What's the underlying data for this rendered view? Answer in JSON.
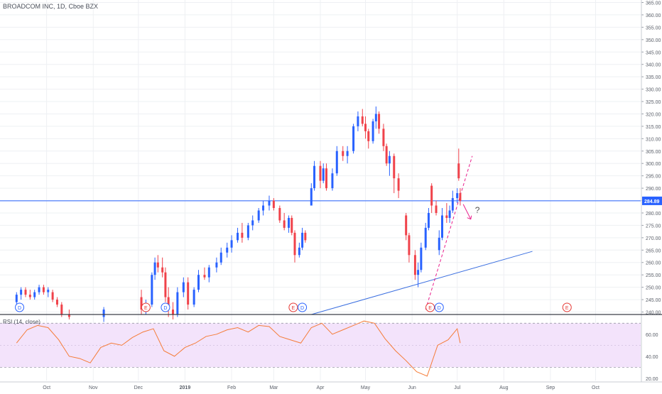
{
  "header": {
    "title": "BROADCOM INC, 1D, Cboe BZX"
  },
  "rsi_panel": {
    "label": "RSI (14, close)"
  },
  "colors": {
    "up": "#2962ff",
    "down": "#f0424a",
    "hline": "#2962ff",
    "trendline": "#3b6fe0",
    "pink": "#e91e8c",
    "rsi_line": "#f57c38",
    "rsi_band": "#f3e3fb",
    "grid": "#eef0f3",
    "event_blue": "#2962ff",
    "event_red": "#e53935"
  },
  "chart_data": [
    {
      "type": "candlestick",
      "title": "BROADCOM INC, 1D, Cboe BZX",
      "x_tick_labels": [
        "Oct",
        "Nov",
        "Dec",
        "2019",
        "Feb",
        "Mar",
        "Apr",
        "May",
        "Jun",
        "Jul",
        "Aug",
        "Sep",
        "Oct"
      ],
      "y_ticks": [
        240,
        245,
        250,
        255,
        260,
        265,
        270,
        275,
        280,
        285,
        290,
        295,
        300,
        305,
        310,
        315,
        320,
        325,
        330,
        335,
        340,
        345,
        350,
        355,
        360,
        365
      ],
      "y_tick_labels": [
        "240.00",
        "245.00",
        "250.00",
        "255.00",
        "260.00",
        "265.00",
        "270.00",
        "275.00",
        "280.00",
        "285.00",
        "290.00",
        "295.00",
        "300.00",
        "305.00",
        "310.00",
        "315.00",
        "320.00",
        "325.00",
        "330.00",
        "335.00",
        "340.00",
        "345.00",
        "350.00",
        "355.00",
        "360.00",
        "365.00"
      ],
      "ylim": [
        239,
        366
      ],
      "last_price": 284.89,
      "last_price_label": "284.89",
      "horizontal_line": 284.89,
      "annotation": "?",
      "events": [
        {
          "date": "2018-09-13",
          "label": "D",
          "kind": "dividend"
        },
        {
          "date": "2018-12-06",
          "label": "E",
          "kind": "earnings"
        },
        {
          "date": "2018-12-19",
          "label": "D",
          "kind": "dividend"
        },
        {
          "date": "2019-03-14",
          "label": "E",
          "kind": "earnings"
        },
        {
          "date": "2019-03-20",
          "label": "D",
          "kind": "dividend"
        },
        {
          "date": "2019-06-13",
          "label": "E",
          "kind": "earnings"
        },
        {
          "date": "2019-06-19",
          "label": "D",
          "kind": "dividend"
        },
        {
          "date": "2019-09-12",
          "label": "E",
          "kind": "earnings"
        }
      ],
      "trendlines": [
        {
          "from": {
            "date": "2019-03-26",
            "value": 239
          },
          "to": {
            "date": "2019-08-20",
            "value": 264.5
          }
        },
        {
          "from": {
            "date": "2019-06-10",
            "value": 241
          },
          "to": {
            "date": "2019-07-11",
            "value": 303
          }
        }
      ],
      "arrow": {
        "from": {
          "date": "2019-07-05",
          "value": 283.5
        },
        "to": {
          "date": "2019-07-10",
          "value": 277.5
        }
      },
      "candles": [
        {
          "d": "2018-09-11",
          "o": 244,
          "h": 248,
          "l": 242,
          "c": 247
        },
        {
          "d": "2018-09-14",
          "o": 247,
          "h": 250,
          "l": 245,
          "c": 249
        },
        {
          "d": "2018-09-17",
          "o": 249,
          "h": 250,
          "l": 246,
          "c": 247
        },
        {
          "d": "2018-09-20",
          "o": 247,
          "h": 249,
          "l": 245,
          "c": 246
        },
        {
          "d": "2018-09-23",
          "o": 246,
          "h": 249,
          "l": 245,
          "c": 248
        },
        {
          "d": "2018-09-26",
          "o": 248,
          "h": 251,
          "l": 247,
          "c": 250
        },
        {
          "d": "2018-09-29",
          "o": 250,
          "h": 251,
          "l": 247,
          "c": 248
        },
        {
          "d": "2018-10-02",
          "o": 248,
          "h": 250,
          "l": 246,
          "c": 249
        },
        {
          "d": "2018-10-05",
          "o": 248,
          "h": 249,
          "l": 244,
          "c": 245
        },
        {
          "d": "2018-10-08",
          "o": 245,
          "h": 246,
          "l": 242,
          "c": 243
        },
        {
          "d": "2018-10-11",
          "o": 243,
          "h": 244,
          "l": 238,
          "c": 239
        },
        {
          "d": "2018-10-16",
          "o": 239,
          "h": 241,
          "l": 237,
          "c": 238
        },
        {
          "d": "2018-11-08",
          "o": 238,
          "h": 242,
          "l": 236,
          "c": 241
        },
        {
          "d": "2018-12-03",
          "o": 246,
          "h": 249,
          "l": 239,
          "c": 241
        },
        {
          "d": "2018-12-06",
          "o": 242,
          "h": 245,
          "l": 239,
          "c": 243
        },
        {
          "d": "2018-12-10",
          "o": 243,
          "h": 256,
          "l": 242,
          "c": 255
        },
        {
          "d": "2018-12-12",
          "o": 255,
          "h": 262,
          "l": 253,
          "c": 260
        },
        {
          "d": "2018-12-14",
          "o": 260,
          "h": 263,
          "l": 256,
          "c": 258
        },
        {
          "d": "2018-12-17",
          "o": 258,
          "h": 262,
          "l": 254,
          "c": 256
        },
        {
          "d": "2018-12-19",
          "o": 256,
          "h": 258,
          "l": 244,
          "c": 246
        },
        {
          "d": "2018-12-21",
          "o": 246,
          "h": 250,
          "l": 238,
          "c": 241
        },
        {
          "d": "2018-12-24",
          "o": 241,
          "h": 244,
          "l": 237,
          "c": 239
        },
        {
          "d": "2018-12-27",
          "o": 239,
          "h": 250,
          "l": 238,
          "c": 248
        },
        {
          "d": "2018-12-31",
          "o": 248,
          "h": 254,
          "l": 246,
          "c": 252
        },
        {
          "d": "2019-01-03",
          "o": 252,
          "h": 254,
          "l": 241,
          "c": 243
        },
        {
          "d": "2019-01-07",
          "o": 243,
          "h": 250,
          "l": 242,
          "c": 249
        },
        {
          "d": "2019-01-10",
          "o": 249,
          "h": 257,
          "l": 248,
          "c": 255
        },
        {
          "d": "2019-01-14",
          "o": 255,
          "h": 258,
          "l": 253,
          "c": 254
        },
        {
          "d": "2019-01-17",
          "o": 254,
          "h": 259,
          "l": 252,
          "c": 258
        },
        {
          "d": "2019-01-22",
          "o": 258,
          "h": 262,
          "l": 256,
          "c": 260
        },
        {
          "d": "2019-01-25",
          "o": 260,
          "h": 266,
          "l": 259,
          "c": 264
        },
        {
          "d": "2019-01-29",
          "o": 264,
          "h": 268,
          "l": 262,
          "c": 266
        },
        {
          "d": "2019-02-01",
          "o": 266,
          "h": 271,
          "l": 264,
          "c": 269
        },
        {
          "d": "2019-02-05",
          "o": 269,
          "h": 274,
          "l": 268,
          "c": 272
        },
        {
          "d": "2019-02-08",
          "o": 272,
          "h": 276,
          "l": 268,
          "c": 270
        },
        {
          "d": "2019-02-12",
          "o": 270,
          "h": 276,
          "l": 269,
          "c": 275
        },
        {
          "d": "2019-02-15",
          "o": 275,
          "h": 279,
          "l": 273,
          "c": 277
        },
        {
          "d": "2019-02-19",
          "o": 277,
          "h": 282,
          "l": 276,
          "c": 281
        },
        {
          "d": "2019-02-22",
          "o": 281,
          "h": 285,
          "l": 279,
          "c": 283
        },
        {
          "d": "2019-02-26",
          "o": 283,
          "h": 287,
          "l": 281,
          "c": 285
        },
        {
          "d": "2019-03-01",
          "o": 285,
          "h": 286,
          "l": 281,
          "c": 282
        },
        {
          "d": "2019-03-05",
          "o": 282,
          "h": 283,
          "l": 276,
          "c": 277
        },
        {
          "d": "2019-03-08",
          "o": 277,
          "h": 280,
          "l": 273,
          "c": 274
        },
        {
          "d": "2019-03-11",
          "o": 274,
          "h": 279,
          "l": 272,
          "c": 278
        },
        {
          "d": "2019-03-13",
          "o": 278,
          "h": 279,
          "l": 271,
          "c": 272
        },
        {
          "d": "2019-03-15",
          "o": 272,
          "h": 273,
          "l": 260,
          "c": 263
        },
        {
          "d": "2019-03-18",
          "o": 263,
          "h": 268,
          "l": 262,
          "c": 266
        },
        {
          "d": "2019-03-20",
          "o": 266,
          "h": 274,
          "l": 265,
          "c": 272
        },
        {
          "d": "2019-03-22",
          "o": 272,
          "h": 273,
          "l": 268,
          "c": 269
        },
        {
          "d": "2019-03-26",
          "o": 283,
          "h": 292,
          "l": 283,
          "c": 290
        },
        {
          "d": "2019-03-28",
          "o": 290,
          "h": 301,
          "l": 289,
          "c": 299
        },
        {
          "d": "2019-04-01",
          "o": 299,
          "h": 301,
          "l": 290,
          "c": 293
        },
        {
          "d": "2019-04-03",
          "o": 293,
          "h": 300,
          "l": 292,
          "c": 298
        },
        {
          "d": "2019-04-05",
          "o": 298,
          "h": 300,
          "l": 289,
          "c": 290
        },
        {
          "d": "2019-04-09",
          "o": 290,
          "h": 298,
          "l": 289,
          "c": 296
        },
        {
          "d": "2019-04-12",
          "o": 296,
          "h": 307,
          "l": 295,
          "c": 305
        },
        {
          "d": "2019-04-16",
          "o": 305,
          "h": 307,
          "l": 301,
          "c": 303
        },
        {
          "d": "2019-04-19",
          "o": 303,
          "h": 307,
          "l": 300,
          "c": 305
        },
        {
          "d": "2019-04-23",
          "o": 305,
          "h": 316,
          "l": 304,
          "c": 315
        },
        {
          "d": "2019-04-26",
          "o": 315,
          "h": 321,
          "l": 313,
          "c": 319
        },
        {
          "d": "2019-04-29",
          "o": 319,
          "h": 322,
          "l": 315,
          "c": 316
        },
        {
          "d": "2019-05-01",
          "o": 316,
          "h": 319,
          "l": 310,
          "c": 313
        },
        {
          "d": "2019-05-03",
          "o": 313,
          "h": 314,
          "l": 306,
          "c": 309
        },
        {
          "d": "2019-05-06",
          "o": 309,
          "h": 318,
          "l": 308,
          "c": 317
        },
        {
          "d": "2019-05-08",
          "o": 317,
          "h": 323,
          "l": 314,
          "c": 320
        },
        {
          "d": "2019-05-10",
          "o": 320,
          "h": 321,
          "l": 312,
          "c": 314
        },
        {
          "d": "2019-05-13",
          "o": 314,
          "h": 316,
          "l": 305,
          "c": 307
        },
        {
          "d": "2019-05-15",
          "o": 307,
          "h": 308,
          "l": 299,
          "c": 300
        },
        {
          "d": "2019-05-17",
          "o": 300,
          "h": 305,
          "l": 295,
          "c": 303
        },
        {
          "d": "2019-05-20",
          "o": 303,
          "h": 304,
          "l": 288,
          "c": 294
        },
        {
          "d": "2019-05-23",
          "o": 294,
          "h": 296,
          "l": 286,
          "c": 289
        },
        {
          "d": "2019-05-28",
          "o": 279,
          "h": 280,
          "l": 269,
          "c": 271
        },
        {
          "d": "2019-05-30",
          "o": 271,
          "h": 272,
          "l": 260,
          "c": 263
        },
        {
          "d": "2019-06-03",
          "o": 263,
          "h": 265,
          "l": 253,
          "c": 255
        },
        {
          "d": "2019-06-05",
          "o": 255,
          "h": 260,
          "l": 250,
          "c": 257
        },
        {
          "d": "2019-06-07",
          "o": 257,
          "h": 268,
          "l": 256,
          "c": 266
        },
        {
          "d": "2019-06-10",
          "o": 266,
          "h": 276,
          "l": 265,
          "c": 274
        },
        {
          "d": "2019-06-12",
          "o": 274,
          "h": 282,
          "l": 273,
          "c": 280
        },
        {
          "d": "2019-06-14",
          "o": 291,
          "h": 292,
          "l": 280,
          "c": 283
        },
        {
          "d": "2019-06-17",
          "o": 283,
          "h": 285,
          "l": 279,
          "c": 280
        },
        {
          "d": "2019-06-19",
          "o": 265,
          "h": 273,
          "l": 263,
          "c": 270
        },
        {
          "d": "2019-06-21",
          "o": 270,
          "h": 282,
          "l": 269,
          "c": 279
        },
        {
          "d": "2019-06-24",
          "o": 279,
          "h": 284,
          "l": 276,
          "c": 278
        },
        {
          "d": "2019-06-26",
          "o": 278,
          "h": 283,
          "l": 276,
          "c": 281
        },
        {
          "d": "2019-06-28",
          "o": 281,
          "h": 289,
          "l": 280,
          "c": 286
        },
        {
          "d": "2019-07-01",
          "o": 286,
          "h": 290,
          "l": 284,
          "c": 288
        },
        {
          "d": "2019-07-02",
          "o": 300,
          "h": 306,
          "l": 293,
          "c": 294
        },
        {
          "d": "2019-07-03",
          "o": 288,
          "h": 290,
          "l": 283,
          "c": 284.89
        }
      ]
    },
    {
      "type": "line",
      "title": "RSI (14, close)",
      "y_ticks": [
        20,
        40,
        60
      ],
      "y_tick_labels": [
        "20.00",
        "40.00",
        "60.00"
      ],
      "ylim": [
        18,
        76
      ],
      "band": [
        30,
        70
      ],
      "dates": [
        "2018-09-11",
        "2018-09-18",
        "2018-09-25",
        "2018-10-02",
        "2018-10-09",
        "2018-10-16",
        "2018-10-23",
        "2018-10-30",
        "2018-11-06",
        "2018-11-13",
        "2018-11-20",
        "2018-11-27",
        "2018-12-04",
        "2018-12-11",
        "2018-12-18",
        "2018-12-25",
        "2019-01-01",
        "2019-01-08",
        "2019-01-15",
        "2019-01-22",
        "2019-01-29",
        "2019-02-05",
        "2019-02-12",
        "2019-02-19",
        "2019-02-26",
        "2019-03-05",
        "2019-03-12",
        "2019-03-19",
        "2019-03-26",
        "2019-04-02",
        "2019-04-09",
        "2019-04-16",
        "2019-04-23",
        "2019-04-30",
        "2019-05-07",
        "2019-05-14",
        "2019-05-21",
        "2019-05-28",
        "2019-06-04",
        "2019-06-11",
        "2019-06-18",
        "2019-06-25",
        "2019-07-01",
        "2019-07-03"
      ],
      "values": [
        52,
        64,
        68,
        66,
        55,
        40,
        38,
        34,
        48,
        52,
        50,
        57,
        62,
        65,
        45,
        40,
        48,
        52,
        58,
        60,
        64,
        66,
        62,
        68,
        67,
        58,
        55,
        52,
        66,
        70,
        60,
        64,
        68,
        72,
        70,
        56,
        45,
        36,
        26,
        22,
        50,
        55,
        65,
        52
      ]
    }
  ]
}
